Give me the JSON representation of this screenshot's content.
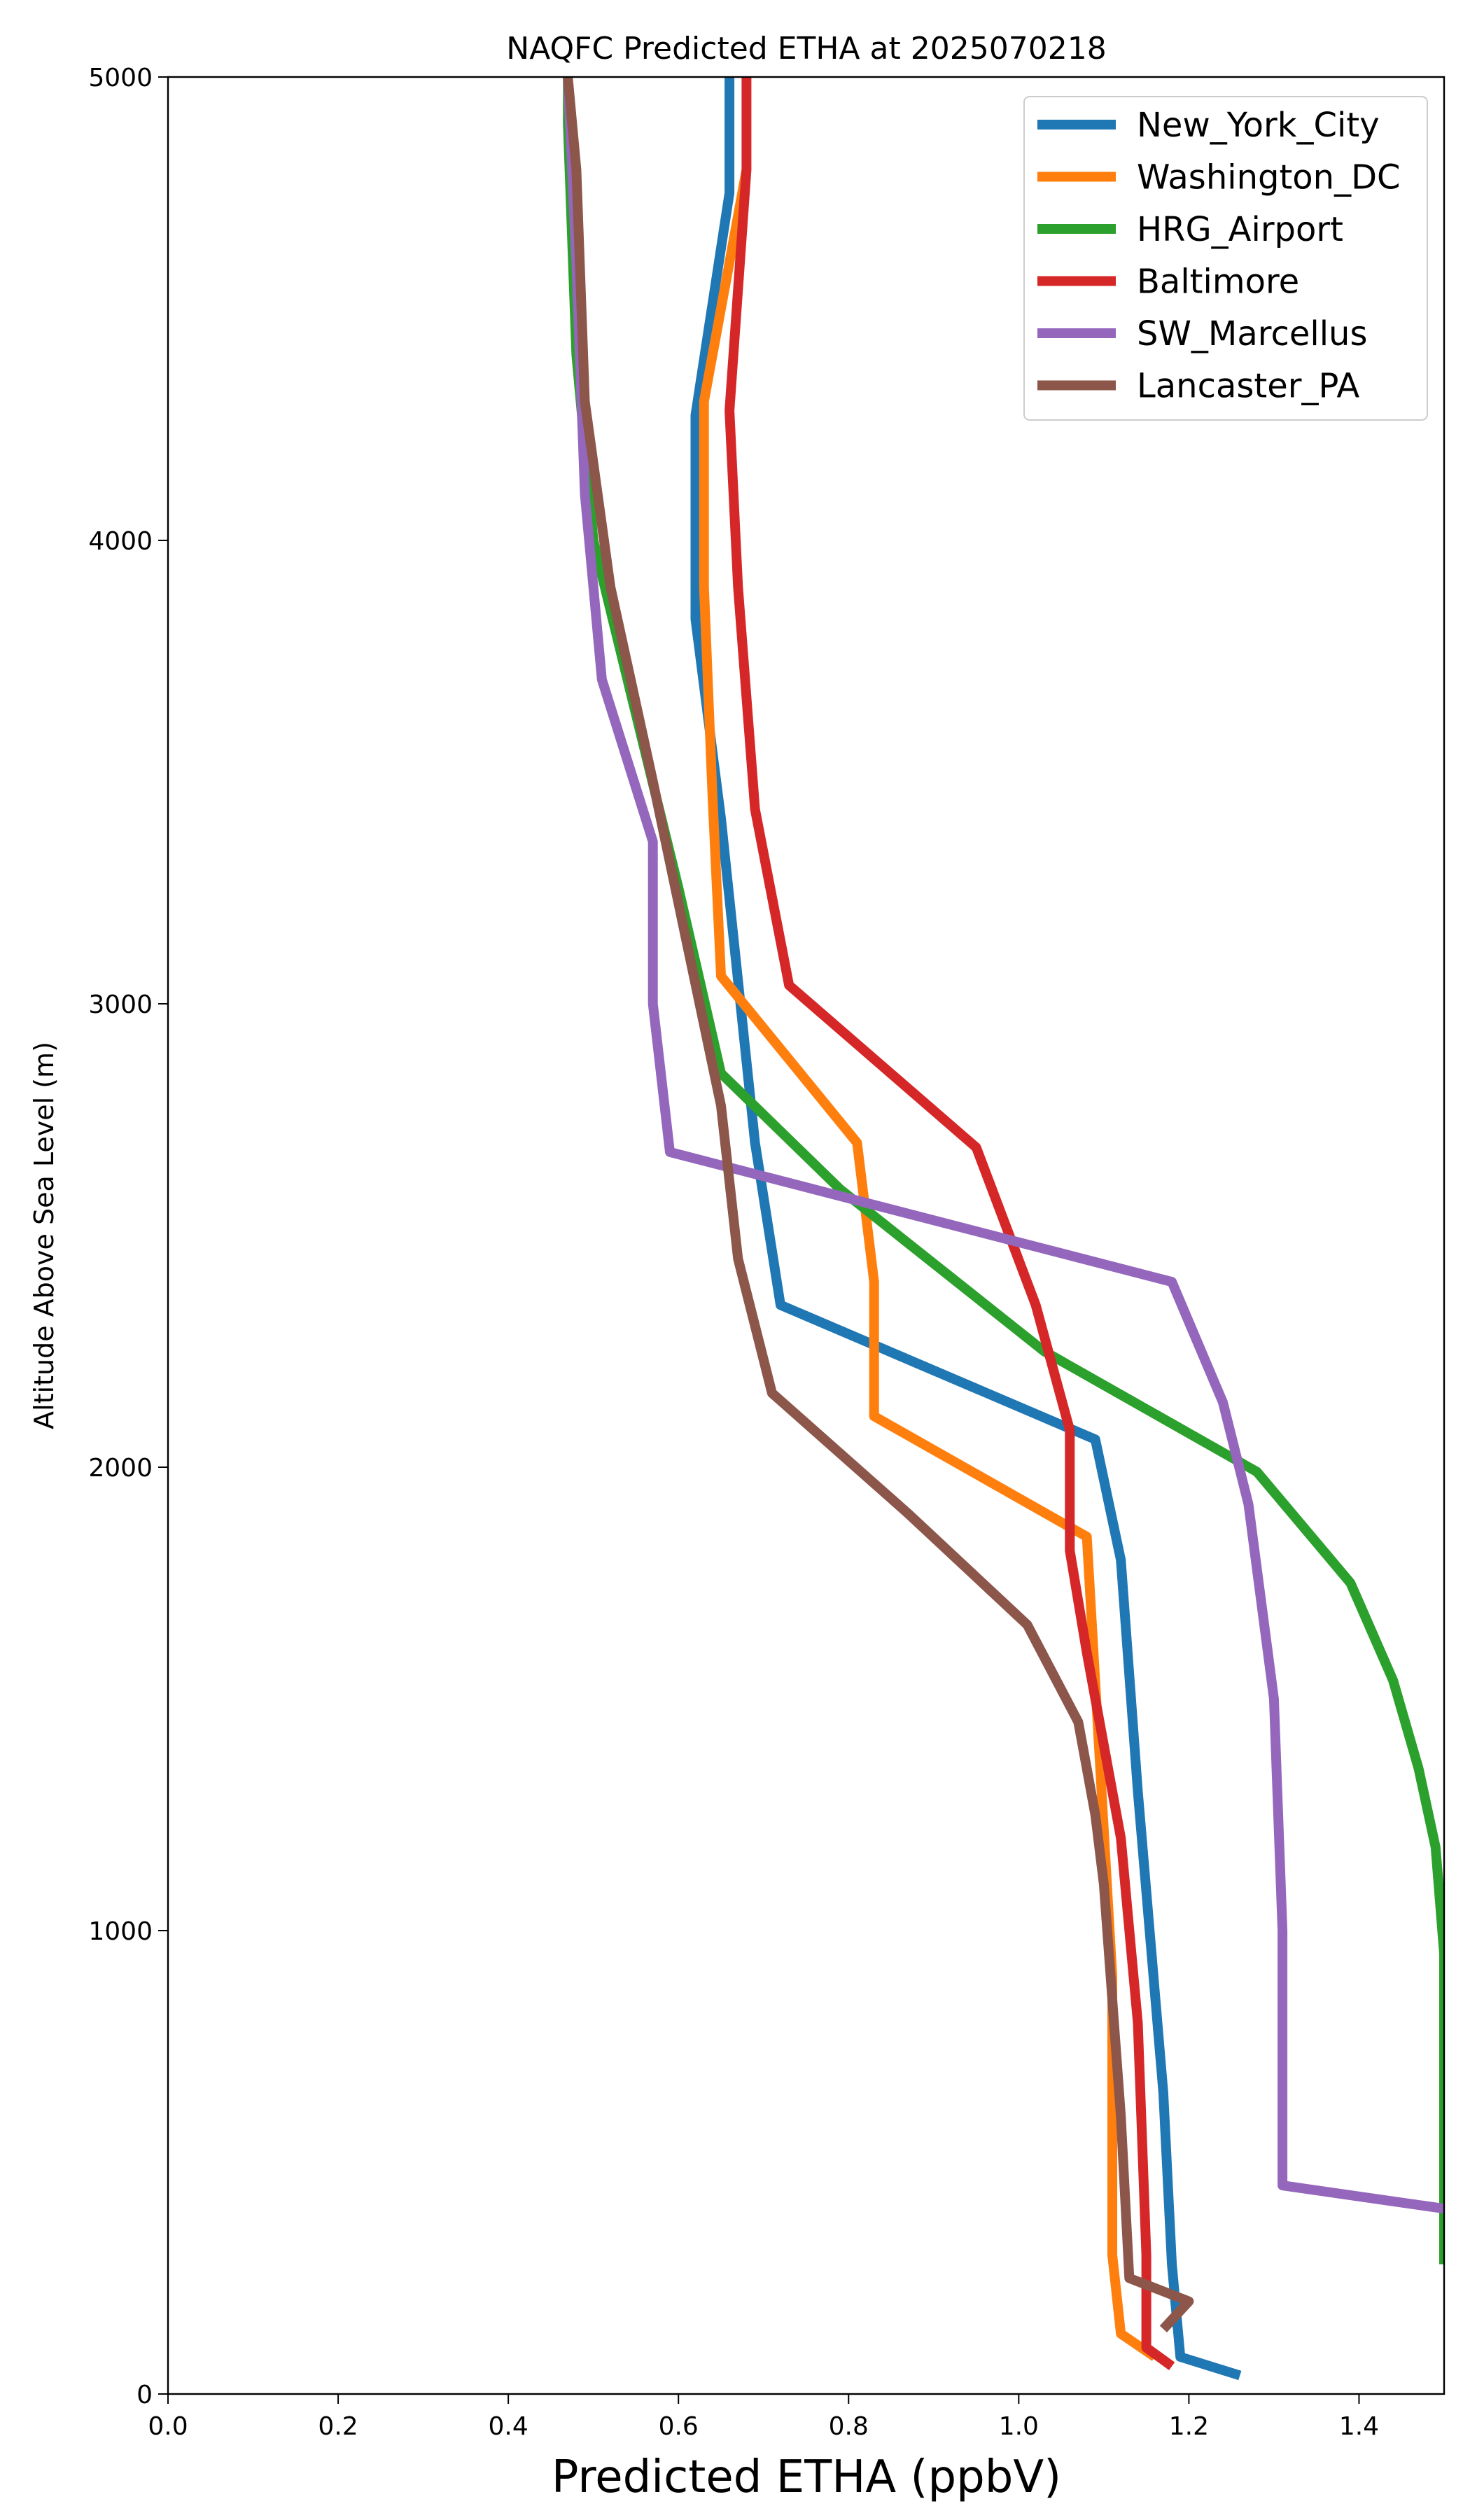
{
  "chart_data": {
    "type": "line",
    "title": "NAQFC Predicted ETHA at 2025070218",
    "xlabel": "Predicted ETHA (ppbV)",
    "ylabel": "Altitude Above Sea Level (m)",
    "xlim": [
      0.0,
      1.5
    ],
    "ylim": [
      0,
      5000
    ],
    "xticks": [
      "0.0",
      "0.2",
      "0.4",
      "0.6",
      "0.8",
      "1.0",
      "1.2",
      "1.4"
    ],
    "yticks": [
      "0",
      "1000",
      "2000",
      "3000",
      "4000",
      "5000"
    ],
    "grid": false,
    "legend_position": "top-right",
    "series": [
      {
        "name": "New_York_City",
        "color": "#1f77b4",
        "points": [
          [
            1.26,
            40
          ],
          [
            1.19,
            80
          ],
          [
            1.18,
            280
          ],
          [
            1.17,
            650
          ],
          [
            1.14,
            1300
          ],
          [
            1.12,
            1800
          ],
          [
            1.09,
            2060
          ],
          [
            0.72,
            2350
          ],
          [
            0.69,
            2700
          ],
          [
            0.65,
            3400
          ],
          [
            0.62,
            3830
          ],
          [
            0.62,
            4270
          ],
          [
            0.66,
            4750
          ],
          [
            0.66,
            5000
          ]
        ]
      },
      {
        "name": "Washington_DC",
        "color": "#ff7f0e",
        "points": [
          [
            1.16,
            80
          ],
          [
            1.12,
            130
          ],
          [
            1.11,
            300
          ],
          [
            1.11,
            900
          ],
          [
            1.08,
            1850
          ],
          [
            0.83,
            2110
          ],
          [
            0.83,
            2400
          ],
          [
            0.81,
            2700
          ],
          [
            0.65,
            3060
          ],
          [
            0.64,
            3450
          ],
          [
            0.63,
            3900
          ],
          [
            0.63,
            4300
          ],
          [
            0.66,
            4600
          ],
          [
            0.68,
            4800
          ]
        ]
      },
      {
        "name": "HRG_Airport",
        "color": "#2ca02c",
        "points": [
          [
            1.5,
            280
          ],
          [
            1.5,
            950
          ],
          [
            1.49,
            1180
          ],
          [
            1.47,
            1350
          ],
          [
            1.44,
            1540
          ],
          [
            1.39,
            1750
          ],
          [
            1.28,
            1990
          ],
          [
            1.03,
            2250
          ],
          [
            0.79,
            2600
          ],
          [
            0.65,
            2850
          ],
          [
            0.6,
            3250
          ],
          [
            0.5,
            4000
          ],
          [
            0.48,
            4400
          ],
          [
            0.47,
            4900
          ],
          [
            0.47,
            5000
          ]
        ]
      },
      {
        "name": "Baltimore",
        "color": "#d62728",
        "points": [
          [
            1.18,
            60
          ],
          [
            1.15,
            100
          ],
          [
            1.15,
            300
          ],
          [
            1.14,
            800
          ],
          [
            1.12,
            1200
          ],
          [
            1.08,
            1600
          ],
          [
            1.06,
            1820
          ],
          [
            1.06,
            2080
          ],
          [
            1.02,
            2350
          ],
          [
            0.95,
            2690
          ],
          [
            0.73,
            3040
          ],
          [
            0.69,
            3420
          ],
          [
            0.67,
            3900
          ],
          [
            0.66,
            4280
          ],
          [
            0.68,
            4800
          ],
          [
            0.68,
            5000
          ]
        ]
      },
      {
        "name": "SW_Marcellus",
        "color": "#9467bd",
        "points": [
          [
            1.5,
            400
          ],
          [
            1.31,
            450
          ],
          [
            1.31,
            520
          ],
          [
            1.31,
            1000
          ],
          [
            1.3,
            1500
          ],
          [
            1.27,
            1920
          ],
          [
            1.24,
            2140
          ],
          [
            1.18,
            2400
          ],
          [
            0.59,
            2680
          ],
          [
            0.57,
            3000
          ],
          [
            0.57,
            3350
          ],
          [
            0.51,
            3700
          ],
          [
            0.49,
            4100
          ],
          [
            0.48,
            4600
          ],
          [
            0.47,
            5000
          ]
        ]
      },
      {
        "name": "Lancaster_PA",
        "color": "#8c564b",
        "points": [
          [
            1.17,
            140
          ],
          [
            1.2,
            200
          ],
          [
            1.13,
            250
          ],
          [
            1.12,
            600
          ],
          [
            1.1,
            1100
          ],
          [
            1.09,
            1250
          ],
          [
            1.07,
            1450
          ],
          [
            1.01,
            1660
          ],
          [
            0.87,
            1900
          ],
          [
            0.71,
            2160
          ],
          [
            0.67,
            2450
          ],
          [
            0.65,
            2780
          ],
          [
            0.57,
            3480
          ],
          [
            0.52,
            3900
          ],
          [
            0.49,
            4300
          ],
          [
            0.48,
            4800
          ],
          [
            0.47,
            5000
          ]
        ]
      }
    ]
  }
}
